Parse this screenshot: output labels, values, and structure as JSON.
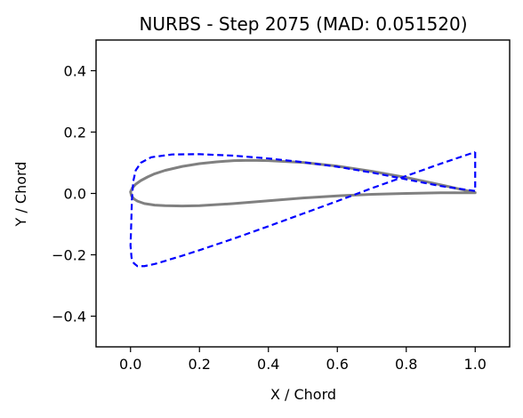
{
  "chart_data": {
    "type": "line",
    "title": "NURBS - Step 2075 (MAD: 0.051520)",
    "xlabel": "X / Chord",
    "ylabel": "Y / Chord",
    "xlim": [
      -0.1,
      1.1
    ],
    "ylim": [
      -0.5,
      0.5
    ],
    "grid": false,
    "x_ticks": [
      {
        "value": 0.0,
        "label": "0.0"
      },
      {
        "value": 0.2,
        "label": "0.2"
      },
      {
        "value": 0.4,
        "label": "0.4"
      },
      {
        "value": 0.6,
        "label": "0.6"
      },
      {
        "value": 0.8,
        "label": "0.8"
      },
      {
        "value": 1.0,
        "label": "1.0"
      }
    ],
    "y_ticks": [
      {
        "value": -0.4,
        "label": "−0.4"
      },
      {
        "value": -0.2,
        "label": "−0.2"
      },
      {
        "value": 0.0,
        "label": "0.0"
      },
      {
        "value": 0.2,
        "label": "0.2"
      },
      {
        "value": 0.4,
        "label": "0.4"
      }
    ],
    "series": [
      {
        "color": "#808080",
        "style": "solid",
        "x": [
          1.0,
          0.9,
          0.8,
          0.7,
          0.6,
          0.5,
          0.4,
          0.35,
          0.3,
          0.25,
          0.2,
          0.15,
          0.1,
          0.07,
          0.05,
          0.03,
          0.015,
          0.005,
          0.0,
          0.003,
          0.01,
          0.02,
          0.04,
          0.07,
          0.1,
          0.15,
          0.2,
          0.3,
          0.4,
          0.5,
          0.6,
          0.7,
          0.8,
          0.9,
          1.0
        ],
        "y": [
          0.003,
          0.028,
          0.052,
          0.072,
          0.089,
          0.101,
          0.107,
          0.108,
          0.107,
          0.103,
          0.097,
          0.088,
          0.075,
          0.064,
          0.054,
          0.042,
          0.03,
          0.018,
          0.005,
          -0.008,
          -0.018,
          -0.025,
          -0.033,
          -0.038,
          -0.04,
          -0.041,
          -0.04,
          -0.033,
          -0.024,
          -0.015,
          -0.008,
          -0.003,
          0.0,
          0.002,
          0.002
        ]
      },
      {
        "color": "#0000ff",
        "style": "dashed",
        "x": [
          1.0,
          1.0,
          0.9,
          0.8,
          0.7,
          0.6,
          0.5,
          0.4,
          0.3,
          0.2,
          0.12,
          0.06,
          0.03,
          0.015,
          0.008,
          0.004,
          0.002,
          0.0,
          0.003,
          0.01,
          0.02,
          0.04,
          0.07,
          0.1,
          0.15,
          0.2,
          0.25,
          0.3,
          0.4,
          0.5,
          0.6,
          0.7,
          0.8,
          0.9,
          1.0
        ],
        "y": [
          0.135,
          0.008,
          0.024,
          0.046,
          0.068,
          0.087,
          0.102,
          0.114,
          0.123,
          0.128,
          0.127,
          0.118,
          0.1,
          0.075,
          0.04,
          -0.02,
          -0.1,
          -0.17,
          -0.21,
          -0.228,
          -0.237,
          -0.237,
          -0.23,
          -0.22,
          -0.203,
          -0.185,
          -0.166,
          -0.147,
          -0.107,
          -0.066,
          -0.025,
          0.017,
          0.057,
          0.097,
          0.135
        ]
      }
    ]
  }
}
